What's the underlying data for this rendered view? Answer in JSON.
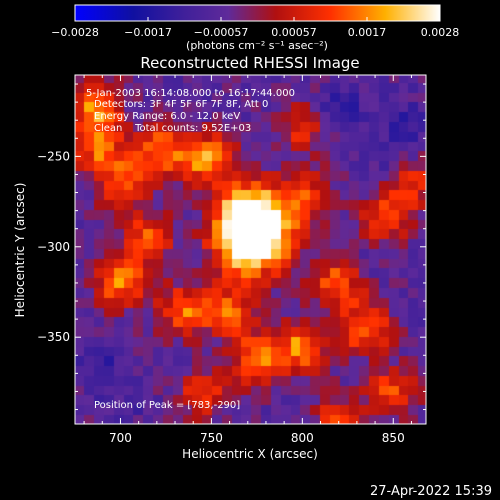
{
  "chart_data": {
    "type": "heatmap",
    "title": "Reconstructed RHESSI Image",
    "xlabel": "Heliocentric X (arcsec)",
    "ylabel": "Heliocentric Y (arcsec)",
    "xlim": [
      675,
      868
    ],
    "ylim": [
      -398,
      -205
    ],
    "x_ticks": [
      "700",
      "750",
      "800",
      "850"
    ],
    "y_ticks": [
      "-250",
      "-300",
      "-350"
    ],
    "colorbar": {
      "ticks": [
        "-0.0028",
        "-0.0017",
        "-0.00057",
        "0.00057",
        "0.0017",
        "0.0028"
      ],
      "range": [
        -0.0028,
        0.0028
      ],
      "units": "(photons cm⁻² s⁻¹ asec⁻²)"
    },
    "annotations": [
      "5-Jan-2003 16:14:08.000 to 16:17:44.000",
      "Detectors: 3F 4F 5F 6F 7F 8F, Att 0",
      "Energy Range: 6.0 - 12.0 keV",
      "Clean    Total counts: 9.52E+03"
    ],
    "peak_label": "Position of Peak = [783,-290]",
    "peak": [
      783,
      -290
    ],
    "hotspots": [
      {
        "x": 772,
        "y": -284,
        "level": 0.0028
      },
      {
        "x": 773,
        "y": -297,
        "level": 0.0026
      },
      {
        "x": 687,
        "y": -222,
        "level": 0.0017
      },
      {
        "x": 688,
        "y": -245,
        "level": 0.0014
      },
      {
        "x": 723,
        "y": -247,
        "level": 0.0016
      },
      {
        "x": 748,
        "y": -250,
        "level": 0.0018
      },
      {
        "x": 702,
        "y": -265,
        "level": 0.0012
      },
      {
        "x": 700,
        "y": -318,
        "level": 0.0019
      },
      {
        "x": 735,
        "y": -335,
        "level": 0.0014
      },
      {
        "x": 760,
        "y": -335,
        "level": 0.0013
      },
      {
        "x": 820,
        "y": -320,
        "level": 0.0014
      },
      {
        "x": 835,
        "y": -345,
        "level": 0.0015
      },
      {
        "x": 800,
        "y": -355,
        "level": 0.0017
      },
      {
        "x": 775,
        "y": -362,
        "level": 0.0015
      },
      {
        "x": 845,
        "y": -285,
        "level": 0.0012
      },
      {
        "x": 860,
        "y": -265,
        "level": 0.001
      },
      {
        "x": 802,
        "y": -272,
        "level": 0.0011
      },
      {
        "x": 715,
        "y": -295,
        "level": 0.0012
      },
      {
        "x": 745,
        "y": -380,
        "level": 0.001
      },
      {
        "x": 850,
        "y": -380,
        "level": 0.0012
      },
      {
        "x": 820,
        "y": -395,
        "level": 0.0009
      },
      {
        "x": 800,
        "y": -235,
        "level": 0.0008
      }
    ],
    "coldspots": [
      {
        "x": 822,
        "y": -225,
        "level": -0.0014
      },
      {
        "x": 855,
        "y": -232,
        "level": -0.0012
      },
      {
        "x": 845,
        "y": -255,
        "level": -0.001
      },
      {
        "x": 688,
        "y": -365,
        "level": -0.0012
      },
      {
        "x": 705,
        "y": -385,
        "level": -0.0009
      },
      {
        "x": 835,
        "y": -305,
        "level": -0.0009
      },
      {
        "x": 740,
        "y": -365,
        "level": -0.0008
      },
      {
        "x": 690,
        "y": -305,
        "level": -0.0007
      }
    ],
    "background_level": -0.0006
  },
  "footer": {
    "date": "27-Apr-2022 15:39"
  }
}
